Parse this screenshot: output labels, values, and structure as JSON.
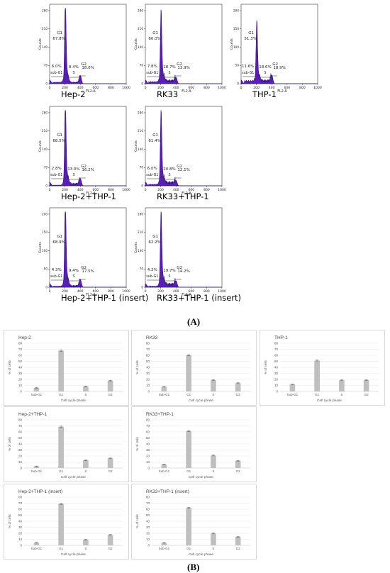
{
  "labels": {
    "panel_a": "(A)",
    "panel_b": "(B)",
    "hist_axis": {
      "y_label": "Counts",
      "x_label": "FL2-A",
      "x_ticks": [
        "0",
        "200",
        "400",
        "600",
        "800",
        "1000"
      ],
      "y_ticks": [
        "0",
        "70",
        "140",
        "210",
        "280"
      ],
      "y_ticks_alt": [
        "0",
        "50",
        "100",
        "150",
        "200"
      ]
    },
    "phase_names": {
      "subg1": "sub-G1",
      "g1": "G1",
      "s": "S",
      "g2": "G2"
    },
    "bar_axis": {
      "y_label": "% of cells",
      "x_label": "Cell cycle phase",
      "y_ticks": [
        "0",
        "10",
        "20",
        "30",
        "40",
        "50",
        "60",
        "70",
        "80"
      ]
    }
  },
  "histograms": [
    {
      "caption": "Hep-2",
      "subg1": "6.0%",
      "g1": "67.8%",
      "s": "8.4%",
      "g2": "18.0%",
      "y_alt": false
    },
    {
      "caption": "RK33",
      "subg1": "7.8%",
      "g1": "60.0%",
      "s": "18.7%",
      "g2": "13.9%",
      "y_alt": false
    },
    {
      "caption": "THP-1",
      "subg1": "11.6%",
      "g1": "51.3%",
      "s": "18.6%",
      "g2": "18.9%",
      "y_alt": true
    },
    {
      "caption": "Hep-2+THP-1",
      "subg1": "2.8%",
      "g1": "68.5%",
      "s": "13.0%",
      "g2": "16.2%",
      "y_alt": false
    },
    {
      "caption": "RK33+THP-1",
      "subg1": "6.0%",
      "g1": "61.4%",
      "s": "20.8%",
      "g2": "12.1%",
      "y_alt": false
    },
    {
      "caption": "Hep-2+THP-1 (insert)",
      "subg1": "4.3%",
      "g1": "68.9%",
      "s": "9.4%",
      "g2": "17.5%",
      "y_alt": true
    },
    {
      "caption": "RK33+THP-1 (insert)",
      "subg1": "4.2%",
      "g1": "62.2%",
      "s": "19.7%",
      "g2": "14.2%",
      "y_alt": false
    }
  ],
  "chart_data": [
    {
      "type": "bar",
      "title": "Hep-2",
      "categories": [
        "Sub-G1",
        "G1",
        "S",
        "G2"
      ],
      "values": [
        6.0,
        67.8,
        8.4,
        18.0
      ],
      "xlabel": "Cell cycle phase",
      "ylabel": "% of cells",
      "ylim": [
        0,
        80
      ]
    },
    {
      "type": "bar",
      "title": "RK33",
      "categories": [
        "Sub-G1",
        "G1",
        "S",
        "G2"
      ],
      "values": [
        7.8,
        60.0,
        18.7,
        13.9
      ],
      "xlabel": "Cell cycle phase",
      "ylabel": "% of cells",
      "ylim": [
        0,
        80
      ]
    },
    {
      "type": "bar",
      "title": "THP-1",
      "categories": [
        "Sub-G1",
        "G1",
        "S",
        "G2"
      ],
      "values": [
        11.6,
        51.3,
        18.6,
        18.9
      ],
      "xlabel": "Cell cycle phase",
      "ylabel": "% of cells",
      "ylim": [
        0,
        80
      ]
    },
    {
      "type": "bar",
      "title": "Hep-2+THP-1",
      "categories": [
        "Sub-G1",
        "G1",
        "S",
        "G2"
      ],
      "values": [
        2.8,
        68.5,
        13.0,
        16.2
      ],
      "xlabel": "Cell cycle phase",
      "ylabel": "% of cells",
      "ylim": [
        0,
        80
      ]
    },
    {
      "type": "bar",
      "title": "RK33+THP-1",
      "categories": [
        "Sub-G1",
        "G1",
        "S",
        "G2"
      ],
      "values": [
        6.0,
        61.4,
        20.8,
        12.1
      ],
      "xlabel": "Cell cycle phase",
      "ylabel": "% of cells",
      "ylim": [
        0,
        80
      ]
    },
    {
      "type": "bar",
      "title": "Hep-2+THP-1 (insert)",
      "categories": [
        "Sub-G1",
        "G1",
        "S",
        "G2"
      ],
      "values": [
        4.3,
        68.9,
        9.4,
        17.5
      ],
      "xlabel": "Cell cycle phase",
      "ylabel": "% of cells",
      "ylim": [
        0,
        80
      ]
    },
    {
      "type": "bar",
      "title": "RK33+THP-1 (insert)",
      "categories": [
        "Sub-G1",
        "G1",
        "S",
        "G2"
      ],
      "values": [
        4.2,
        62.2,
        19.7,
        14.2
      ],
      "xlabel": "Cell cycle phase",
      "ylabel": "% of cells",
      "ylim": [
        0,
        80
      ]
    }
  ],
  "colors": {
    "histogram_fill": "#5b1fb0",
    "histogram_line": "#2a0b6e",
    "bar_fill": "#bfbfbf",
    "frame": "#d9d9d9",
    "grid": "#e6e6e6"
  }
}
